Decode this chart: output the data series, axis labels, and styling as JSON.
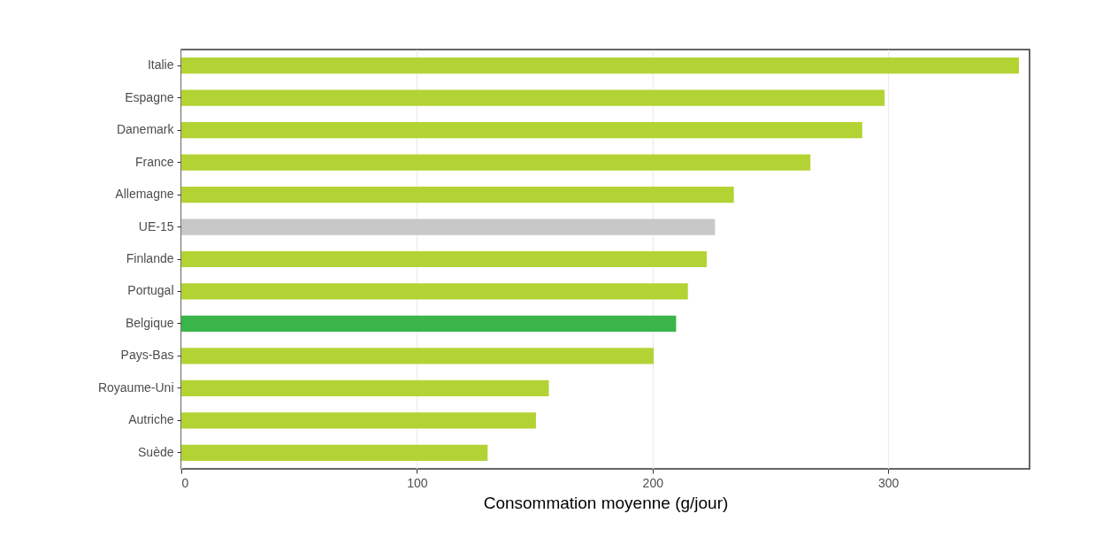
{
  "chart_data": {
    "type": "bar",
    "orientation": "horizontal",
    "xlabel": "Consommation moyenne (g/jour)",
    "categories": [
      "Italie",
      "Espagne",
      "Danemark",
      "France",
      "Allemagne",
      "UE-15",
      "Finlande",
      "Portugal",
      "Belgique",
      "Pays-Bas",
      "Royaume-Uni",
      "Autriche",
      "Suède"
    ],
    "values": [
      355.5,
      298.5,
      289,
      267,
      234.5,
      226.5,
      223,
      215,
      210,
      200.5,
      156,
      150.5,
      130
    ],
    "colors": [
      "#b3d334",
      "#b3d334",
      "#b3d334",
      "#b3d334",
      "#b3d334",
      "#c8c8c8",
      "#b3d334",
      "#b3d334",
      "#39b54a",
      "#b3d334",
      "#b3d334",
      "#b3d334",
      "#b3d334"
    ],
    "xlim": [
      0,
      360
    ],
    "xticks": [
      0,
      100,
      200,
      300
    ],
    "grid": "x"
  }
}
